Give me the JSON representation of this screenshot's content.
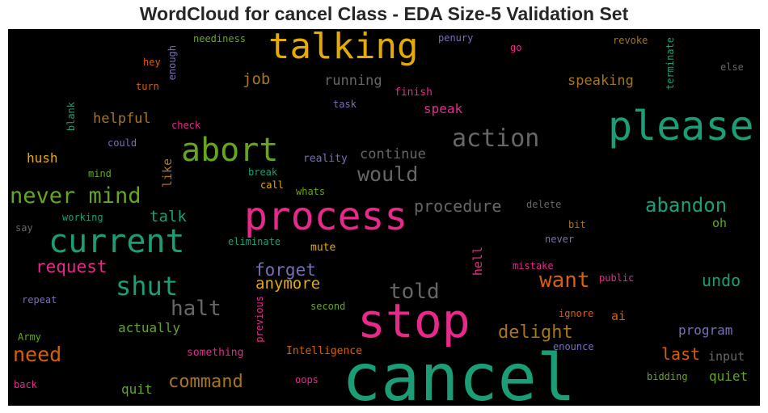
{
  "chart_data": {
    "type": "wordcloud",
    "title": "WordCloud for cancel Class - EDA Size-5 Validation Set",
    "background": "#000000",
    "words": [
      {
        "text": "cancel",
        "weight": 1.0,
        "color": "#1b9e77"
      },
      {
        "text": "stop",
        "weight": 0.92,
        "color": "#e7298a"
      },
      {
        "text": "please",
        "weight": 0.8,
        "color": "#1b9e77"
      },
      {
        "text": "process",
        "weight": 0.76,
        "color": "#e7298a"
      },
      {
        "text": "talking",
        "weight": 0.68,
        "color": "#e6ab02"
      },
      {
        "text": "current",
        "weight": 0.62,
        "color": "#1b9e77"
      },
      {
        "text": "abort",
        "weight": 0.6,
        "color": "#66a61e"
      },
      {
        "text": "shut",
        "weight": 0.5,
        "color": "#1b9e77"
      },
      {
        "text": "action",
        "weight": 0.45,
        "color": "#666666"
      },
      {
        "text": "never mind",
        "weight": 0.4,
        "color": "#66a61e"
      },
      {
        "text": "halt",
        "weight": 0.38,
        "color": "#666666"
      },
      {
        "text": "told",
        "weight": 0.37,
        "color": "#666666"
      },
      {
        "text": "want",
        "weight": 0.37,
        "color": "#d95f02"
      },
      {
        "text": "would",
        "weight": 0.35,
        "color": "#666666"
      },
      {
        "text": "need",
        "weight": 0.35,
        "color": "#d95f02"
      },
      {
        "text": "abandon",
        "weight": 0.34,
        "color": "#1b9e77"
      },
      {
        "text": "command",
        "weight": 0.31,
        "color": "#a6761d"
      },
      {
        "text": "delight",
        "weight": 0.3,
        "color": "#a6761d"
      },
      {
        "text": "request",
        "weight": 0.3,
        "color": "#e7298a"
      },
      {
        "text": "forget",
        "weight": 0.3,
        "color": "#7570b3"
      },
      {
        "text": "last",
        "weight": 0.28,
        "color": "#d95f02"
      },
      {
        "text": "undo",
        "weight": 0.28,
        "color": "#1b9e77"
      },
      {
        "text": "procedure",
        "weight": 0.27,
        "color": "#666666"
      },
      {
        "text": "anymore",
        "weight": 0.27,
        "color": "#e6ab02"
      },
      {
        "text": "talk",
        "weight": 0.26,
        "color": "#1b9e77"
      },
      {
        "text": "job",
        "weight": 0.25,
        "color": "#a6761d"
      },
      {
        "text": "speaking",
        "weight": 0.24,
        "color": "#a6761d"
      },
      {
        "text": "running",
        "weight": 0.23,
        "color": "#666666"
      },
      {
        "text": "continue",
        "weight": 0.23,
        "color": "#666666"
      },
      {
        "text": "helpful",
        "weight": 0.23,
        "color": "#a6761d"
      },
      {
        "text": "speak",
        "weight": 0.22,
        "color": "#e7298a"
      },
      {
        "text": "quiet",
        "weight": 0.22,
        "color": "#66a61e"
      },
      {
        "text": "program",
        "weight": 0.22,
        "color": "#7570b3"
      },
      {
        "text": "actually",
        "weight": 0.22,
        "color": "#66a61e"
      },
      {
        "text": "quit",
        "weight": 0.21,
        "color": "#66a61e"
      },
      {
        "text": "hush",
        "weight": 0.21,
        "color": "#e6ab02"
      },
      {
        "text": "like",
        "weight": 0.2,
        "color": "#a6761d"
      },
      {
        "text": "input",
        "weight": 0.2,
        "color": "#666666"
      },
      {
        "text": "oh",
        "weight": 0.2,
        "color": "#66a61e"
      },
      {
        "text": "hell",
        "weight": 0.2,
        "color": "#e7298a"
      },
      {
        "text": "ai",
        "weight": 0.2,
        "color": "#d95f02"
      },
      {
        "text": "finish",
        "weight": 0.18,
        "color": "#e7298a"
      },
      {
        "text": "reality",
        "weight": 0.18,
        "color": "#7570b3"
      },
      {
        "text": "mute",
        "weight": 0.17,
        "color": "#e6ab02"
      },
      {
        "text": "Intelligence",
        "weight": 0.17,
        "color": "#d95f02"
      },
      {
        "text": "something",
        "weight": 0.17,
        "color": "#e7298a"
      },
      {
        "text": "neediness",
        "weight": 0.17,
        "color": "#66a61e"
      },
      {
        "text": "penury",
        "weight": 0.16,
        "color": "#7570b3"
      },
      {
        "text": "revoke",
        "weight": 0.16,
        "color": "#a6761d"
      },
      {
        "text": "terminate",
        "weight": 0.16,
        "color": "#1b9e77"
      },
      {
        "text": "else",
        "weight": 0.16,
        "color": "#666666"
      },
      {
        "text": "hey",
        "weight": 0.16,
        "color": "#d95f02"
      },
      {
        "text": "enough",
        "weight": 0.16,
        "color": "#7570b3"
      },
      {
        "text": "go",
        "weight": 0.16,
        "color": "#e7298a"
      },
      {
        "text": "turn",
        "weight": 0.16,
        "color": "#d95f02"
      },
      {
        "text": "task",
        "weight": 0.16,
        "color": "#7570b3"
      },
      {
        "text": "blank",
        "weight": 0.16,
        "color": "#1b9e77"
      },
      {
        "text": "check",
        "weight": 0.16,
        "color": "#e7298a"
      },
      {
        "text": "could",
        "weight": 0.16,
        "color": "#7570b3"
      },
      {
        "text": "mind",
        "weight": 0.16,
        "color": "#66a61e"
      },
      {
        "text": "break",
        "weight": 0.16,
        "color": "#1b9e77"
      },
      {
        "text": "call",
        "weight": 0.16,
        "color": "#e6ab02"
      },
      {
        "text": "whats",
        "weight": 0.16,
        "color": "#66a61e"
      },
      {
        "text": "delete",
        "weight": 0.16,
        "color": "#666666"
      },
      {
        "text": "working",
        "weight": 0.16,
        "color": "#1b9e77"
      },
      {
        "text": "say",
        "weight": 0.16,
        "color": "#666666"
      },
      {
        "text": "bit",
        "weight": 0.16,
        "color": "#a6761d"
      },
      {
        "text": "eliminate",
        "weight": 0.16,
        "color": "#1b9e77"
      },
      {
        "text": "never",
        "weight": 0.16,
        "color": "#7570b3"
      },
      {
        "text": "mistake",
        "weight": 0.16,
        "color": "#e7298a"
      },
      {
        "text": "public",
        "weight": 0.16,
        "color": "#e7298a"
      },
      {
        "text": "repeat",
        "weight": 0.16,
        "color": "#7570b3"
      },
      {
        "text": "previous",
        "weight": 0.16,
        "color": "#e7298a"
      },
      {
        "text": "second",
        "weight": 0.16,
        "color": "#66a61e"
      },
      {
        "text": "ignore",
        "weight": 0.16,
        "color": "#d95f02"
      },
      {
        "text": "Army",
        "weight": 0.16,
        "color": "#66a61e"
      },
      {
        "text": "enounce",
        "weight": 0.16,
        "color": "#7570b3"
      },
      {
        "text": "oops",
        "weight": 0.16,
        "color": "#e7298a"
      },
      {
        "text": "back",
        "weight": 0.16,
        "color": "#e7298a"
      },
      {
        "text": "bidding",
        "weight": 0.16,
        "color": "#66a61e"
      }
    ]
  }
}
